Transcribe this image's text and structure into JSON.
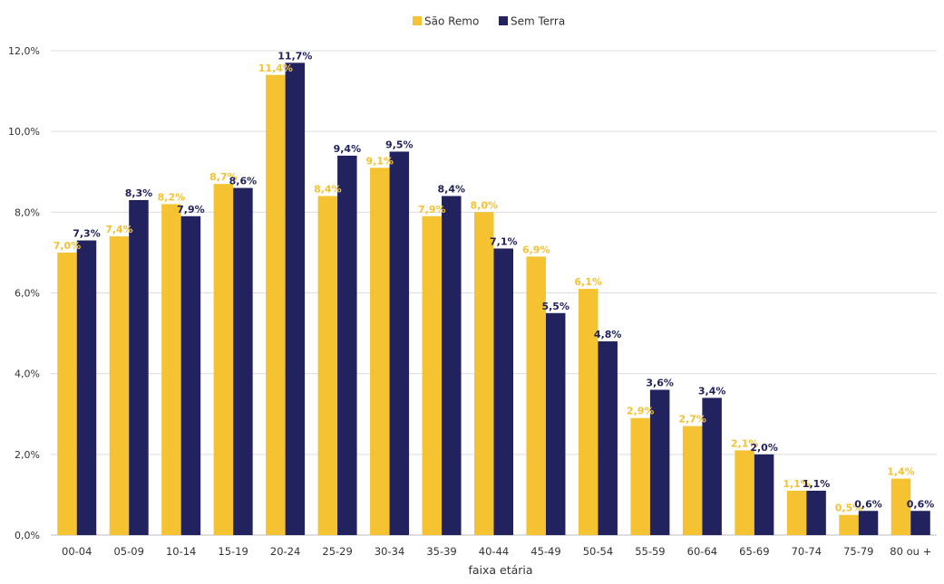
{
  "chart_data": {
    "type": "bar",
    "title": "",
    "xlabel": "faixa etária",
    "ylabel": "",
    "ylim": [
      0,
      12
    ],
    "yticks": [
      "0,0%",
      "2,0%",
      "4,0%",
      "6,0%",
      "8,0%",
      "10,0%",
      "12,0%"
    ],
    "grid": true,
    "legend_position": "top-center",
    "categories": [
      "00-04",
      "05-09",
      "10-14",
      "15-19",
      "20-24",
      "25-29",
      "30-34",
      "35-39",
      "40-44",
      "45-49",
      "50-54",
      "55-59",
      "60-64",
      "65-69",
      "70-74",
      "75-79",
      "80 ou +"
    ],
    "series": [
      {
        "name": "São Remo",
        "color": "#F5C232",
        "values": [
          7.0,
          7.4,
          8.2,
          8.7,
          11.4,
          8.4,
          9.1,
          7.9,
          8.0,
          6.9,
          6.1,
          2.9,
          2.7,
          2.1,
          1.1,
          0.5,
          1.4
        ],
        "labels": [
          "7,0%",
          "7,4%",
          "8,2%",
          "8,7%",
          "11,4%",
          "8,4%",
          "9,1%",
          "7,9%",
          "8,0%",
          "6,9%",
          "6,1%",
          "2,9%",
          "2,7%",
          "2,1%",
          "1,1%",
          "0,5%",
          "1,4%"
        ]
      },
      {
        "name": "Sem Terra",
        "color": "#22235E",
        "values": [
          7.3,
          8.3,
          7.9,
          8.6,
          11.7,
          9.4,
          9.5,
          8.4,
          7.1,
          5.5,
          4.8,
          3.6,
          3.4,
          2.0,
          1.1,
          0.6,
          0.6
        ],
        "labels": [
          "7,3%",
          "8,3%",
          "7,9%",
          "8,6%",
          "11,7%",
          "9,4%",
          "9,5%",
          "8,4%",
          "7,1%",
          "5,5%",
          "4,8%",
          "3,6%",
          "3,4%",
          "2,0%",
          "1,1%",
          "0,6%",
          "0,6%"
        ]
      }
    ]
  }
}
